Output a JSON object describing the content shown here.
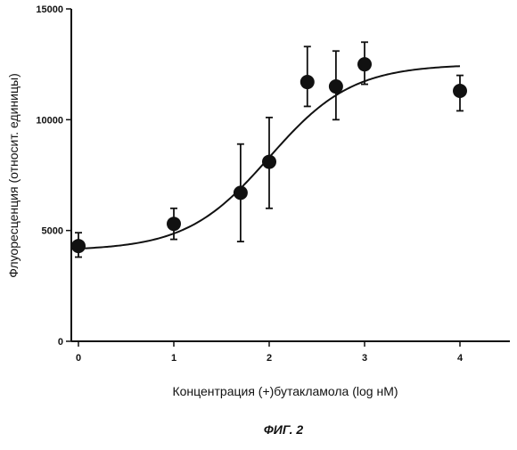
{
  "chart_data": {
    "type": "scatter",
    "title": "",
    "xlabel": "Концентрация (+)бутакламола (log нМ)",
    "ylabel": "Флуоресценция (относит. единицы)",
    "xlim": [
      0,
      4
    ],
    "ylim": [
      0,
      15000
    ],
    "x_ticks": [
      "0",
      "1",
      "2",
      "3",
      "4"
    ],
    "y_ticks": [
      "0",
      "5000",
      "10000",
      "15000"
    ],
    "grid": false,
    "legend": "none",
    "points": [
      {
        "x": 0.0,
        "y": 4300,
        "err_low": 3800,
        "err_high": 4900
      },
      {
        "x": 1.0,
        "y": 5300,
        "err_low": 4600,
        "err_high": 6000
      },
      {
        "x": 1.7,
        "y": 6700,
        "err_low": 4500,
        "err_high": 8900
      },
      {
        "x": 2.0,
        "y": 8100,
        "err_low": 6000,
        "err_high": 10100
      },
      {
        "x": 2.4,
        "y": 11700,
        "err_low": 10600,
        "err_high": 13300
      },
      {
        "x": 2.7,
        "y": 11500,
        "err_low": 10000,
        "err_high": 13100
      },
      {
        "x": 3.0,
        "y": 12500,
        "err_low": 11600,
        "err_high": 13500
      },
      {
        "x": 4.0,
        "y": 11300,
        "err_low": 10400,
        "err_high": 12000
      }
    ],
    "fit_curve": {
      "type": "sigmoid",
      "bottom": 4100,
      "top": 12500,
      "ec50_log": 2.0,
      "hill_slope": 1.0
    }
  },
  "caption": "ФИГ. 2",
  "colors": {
    "ink": "#111111",
    "background": "#ffffff"
  }
}
